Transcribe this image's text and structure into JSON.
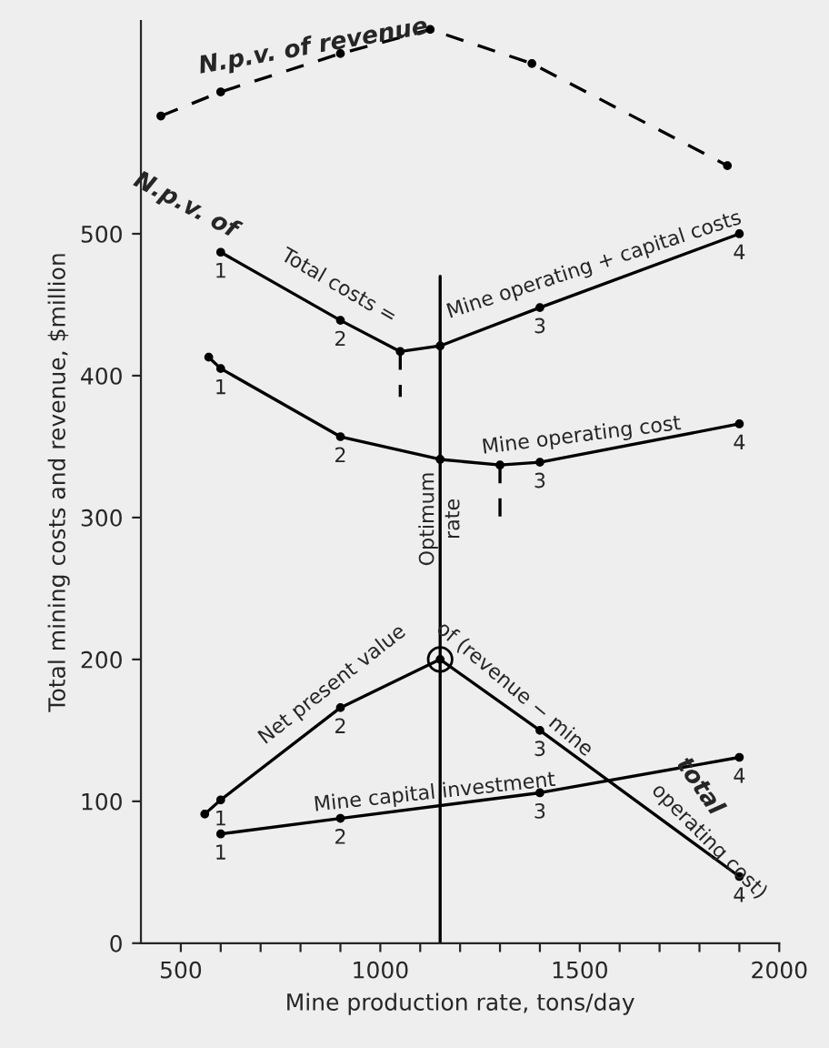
{
  "chart_data": {
    "type": "line",
    "xlabel": "Mine production rate, tons/day",
    "ylabel": "Total mining costs and revenue, $million",
    "xlim": [
      400,
      2000
    ],
    "ylim": [
      0,
      650
    ],
    "xticks": [
      500,
      {
        "value": 600,
        "label": null
      },
      {
        "value": 700,
        "label": null
      },
      {
        "value": 800,
        "label": null
      },
      {
        "value": 900,
        "label": null
      },
      1000,
      {
        "value": 1100,
        "label": null
      },
      {
        "value": 1200,
        "label": null
      },
      {
        "value": 1300,
        "label": null
      },
      {
        "value": 1400,
        "label": null
      },
      1500,
      {
        "value": 1600,
        "label": null
      },
      {
        "value": 1700,
        "label": null
      },
      {
        "value": 1800,
        "label": null
      },
      {
        "value": 1900,
        "label": null
      },
      2000
    ],
    "yticks": [
      0,
      100,
      200,
      300,
      400,
      500
    ],
    "grid": false,
    "legend": false,
    "series": [
      {
        "color": "#000000",
        "line_style": "dashed",
        "marker": "circle",
        "x": [
          450,
          600,
          900,
          1125,
          1380,
          1870
        ],
        "values": [
          583,
          600,
          627,
          644,
          620,
          548
        ]
      },
      {
        "color": "#000000",
        "line_style": "solid",
        "marker": "circle",
        "x": [
          600,
          900,
          1050,
          1150,
          1400,
          1900
        ],
        "values": [
          487,
          439,
          417,
          421,
          448,
          500
        ]
      },
      {
        "color": "#000000",
        "line_style": "dashed",
        "marker": "none",
        "x": [
          1050,
          1050
        ],
        "values": [
          417,
          385
        ]
      },
      {
        "color": "#000000",
        "line_style": "solid",
        "marker": "circle",
        "x": [
          570,
          600,
          900,
          1150,
          1300,
          1400,
          1900
        ],
        "values": [
          413,
          405,
          357,
          341,
          337,
          339,
          366
        ]
      },
      {
        "color": "#000000",
        "line_style": "dashed",
        "marker": "none",
        "x": [
          1300,
          1300
        ],
        "values": [
          337,
          300
        ]
      },
      {
        "color": "#000000",
        "line_style": "solid",
        "marker": "circle",
        "x": [
          560,
          600,
          900,
          1150,
          1400,
          1900
        ],
        "values": [
          91,
          101,
          166,
          200,
          150,
          47
        ]
      },
      {
        "color": "#000000",
        "line_style": "solid",
        "marker": "circle",
        "x": [
          600,
          900,
          1400,
          1900
        ],
        "values": [
          77,
          88,
          106,
          131
        ]
      },
      {
        "color": "#000000",
        "line_style": "solid",
        "marker": "none",
        "x": [
          1150,
          1150
        ],
        "values": [
          0,
          470
        ]
      },
      {
        "type": "scatter",
        "color": "#000000",
        "marker": "circle",
        "x": [
          1150
        ],
        "values": [
          200
        ]
      }
    ],
    "annotations": [
      "N.p.v. of revenue",
      "N.p.v. of",
      "Total costs =",
      "Mine operating + capital costs",
      "Mine operating cost",
      "Net present value",
      "of (revenue − mine",
      "total",
      "operating cost)",
      "Mine capital investment",
      "Optimum",
      "rate",
      {
        "text": "1",
        "x": 600,
        "y": 487
      },
      {
        "text": "2",
        "x": 900,
        "y": 439
      },
      {
        "text": "3",
        "x": 1400,
        "y": 448
      },
      {
        "text": "4",
        "x": 1900,
        "y": 500
      },
      {
        "text": "1",
        "x": 600,
        "y": 405
      },
      {
        "text": "2",
        "x": 900,
        "y": 357
      },
      {
        "text": "3",
        "x": 1400,
        "y": 339
      },
      {
        "text": "4",
        "x": 1900,
        "y": 366
      },
      {
        "text": "1",
        "x": 600,
        "y": 101
      },
      {
        "text": "2",
        "x": 900,
        "y": 166
      },
      {
        "text": "3",
        "x": 1400,
        "y": 150
      },
      {
        "text": "4",
        "x": 1900,
        "y": 47
      },
      {
        "text": "1",
        "x": 600,
        "y": 77
      },
      {
        "text": "2",
        "x": 900,
        "y": 88
      },
      {
        "text": "3",
        "x": 1400,
        "y": 106
      },
      {
        "text": "4",
        "x": 1900,
        "y": 131
      }
    ]
  }
}
